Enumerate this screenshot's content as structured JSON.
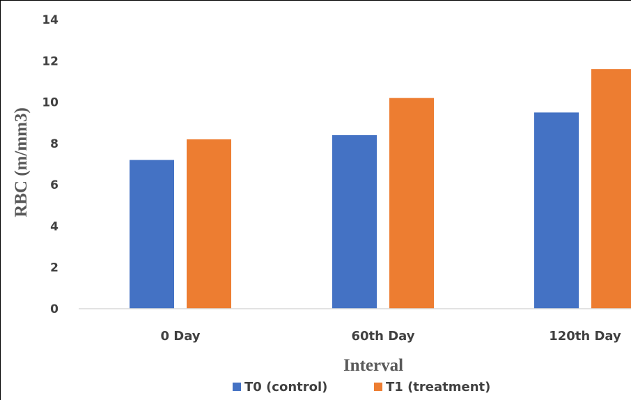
{
  "chart_data": {
    "type": "bar",
    "categories": [
      "0 Day",
      "60th Day",
      "120th Day"
    ],
    "series": [
      {
        "name": "T0 (control)",
        "values": [
          7.2,
          8.4,
          9.5
        ],
        "color": "#4472C4"
      },
      {
        "name": "T1 (treatment)",
        "values": [
          8.2,
          10.2,
          11.6
        ],
        "color": "#ED7D31"
      }
    ],
    "xlabel": "Interval",
    "ylabel": "RBC (m/mm3)",
    "ylim": [
      0,
      14
    ],
    "yticks": [
      "0",
      "2",
      "4",
      "6",
      "8",
      "10",
      "12",
      "14"
    ],
    "grid": false,
    "legend_position": "bottom"
  }
}
